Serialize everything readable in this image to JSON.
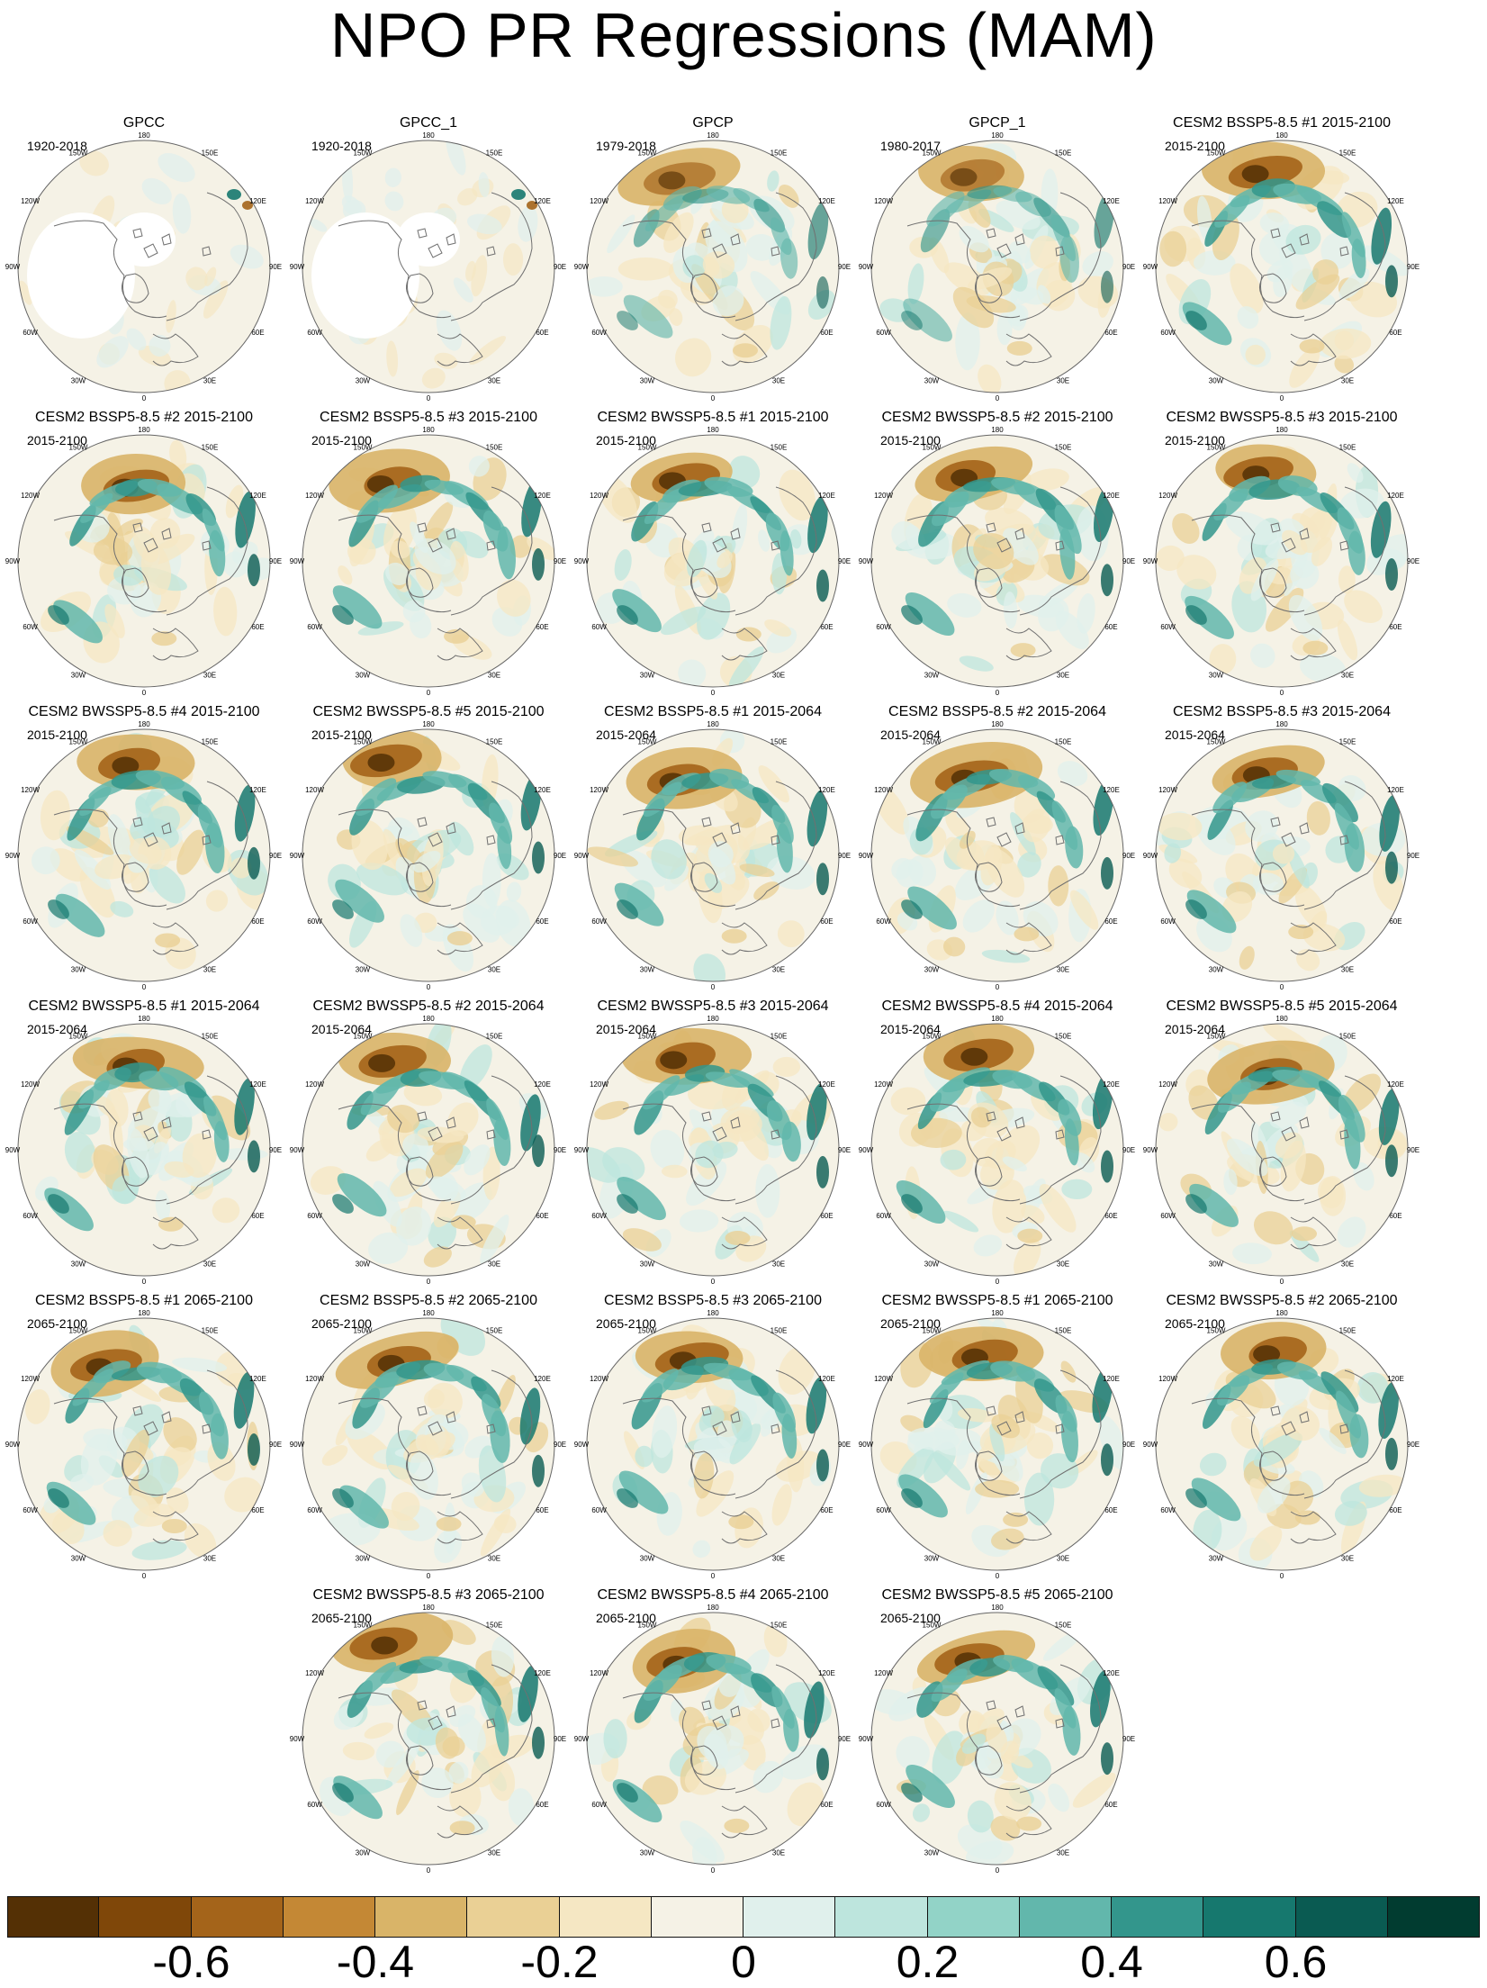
{
  "title": "NPO PR Regressions (MAM)",
  "lon_labels": [
    "180",
    "150E",
    "120E",
    "90E",
    "60E",
    "30E",
    "0",
    "30W",
    "60W",
    "90W",
    "120W",
    "150W"
  ],
  "panels": [
    {
      "title": "GPCC",
      "period": "1920-2018",
      "pattern": "obs_sparse"
    },
    {
      "title": "GPCC_1",
      "period": "1920-2018",
      "pattern": "obs_sparse"
    },
    {
      "title": "GPCP",
      "period": "1979-2018",
      "pattern": "obs"
    },
    {
      "title": "GPCP_1",
      "period": "1980-2017",
      "pattern": "obs"
    },
    {
      "title": "CESM2 BSSP5-8.5 #1 2015-2100",
      "period": "2015-2100",
      "pattern": "model"
    },
    {
      "title": "CESM2 BSSP5-8.5 #2 2015-2100",
      "period": "2015-2100",
      "pattern": "model"
    },
    {
      "title": "CESM2 BSSP5-8.5 #3 2015-2100",
      "period": "2015-2100",
      "pattern": "model"
    },
    {
      "title": "CESM2 BWSSP5-8.5 #1 2015-2100",
      "period": "2015-2100",
      "pattern": "model"
    },
    {
      "title": "CESM2 BWSSP5-8.5 #2 2015-2100",
      "period": "2015-2100",
      "pattern": "model"
    },
    {
      "title": "CESM2 BWSSP5-8.5 #3 2015-2100",
      "period": "2015-2100",
      "pattern": "model"
    },
    {
      "title": "CESM2 BWSSP5-8.5 #4 2015-2100",
      "period": "2015-2100",
      "pattern": "model"
    },
    {
      "title": "CESM2 BWSSP5-8.5 #5 2015-2100",
      "period": "2015-2100",
      "pattern": "model"
    },
    {
      "title": "CESM2 BSSP5-8.5 #1 2015-2064",
      "period": "2015-2064",
      "pattern": "model"
    },
    {
      "title": "CESM2 BSSP5-8.5 #2 2015-2064",
      "period": "2015-2064",
      "pattern": "model"
    },
    {
      "title": "CESM2 BSSP5-8.5 #3 2015-2064",
      "period": "2015-2064",
      "pattern": "model"
    },
    {
      "title": "CESM2 BWSSP5-8.5 #1 2015-2064",
      "period": "2015-2064",
      "pattern": "model"
    },
    {
      "title": "CESM2 BWSSP5-8.5 #2 2015-2064",
      "period": "2015-2064",
      "pattern": "model"
    },
    {
      "title": "CESM2 BWSSP5-8.5 #3 2015-2064",
      "period": "2015-2064",
      "pattern": "model"
    },
    {
      "title": "CESM2 BWSSP5-8.5 #4 2015-2064",
      "period": "2015-2064",
      "pattern": "model"
    },
    {
      "title": "CESM2 BWSSP5-8.5 #5 2015-2064",
      "period": "2015-2064",
      "pattern": "model"
    },
    {
      "title": "CESM2 BSSP5-8.5 #1 2065-2100",
      "period": "2065-2100",
      "pattern": "model"
    },
    {
      "title": "CESM2 BSSP5-8.5 #2 2065-2100",
      "period": "2065-2100",
      "pattern": "model"
    },
    {
      "title": "CESM2 BSSP5-8.5 #3 2065-2100",
      "period": "2065-2100",
      "pattern": "model"
    },
    {
      "title": "CESM2 BWSSP5-8.5 #1 2065-2100",
      "period": "2065-2100",
      "pattern": "model"
    },
    {
      "title": "CESM2 BWSSP5-8.5 #2 2065-2100",
      "period": "2065-2100",
      "pattern": "model"
    },
    {
      "title": "CESM2 BWSSP5-8.5 #3 2065-2100",
      "period": "2065-2100",
      "pattern": "model"
    },
    {
      "title": "CESM2 BWSSP5-8.5 #4 2065-2100",
      "period": "2065-2100",
      "pattern": "model"
    },
    {
      "title": "CESM2 BWSSP5-8.5 #5 2065-2100",
      "period": "2065-2100",
      "pattern": "model"
    }
  ],
  "colorbar": {
    "colors": [
      "#543005",
      "#7f4709",
      "#a4641a",
      "#c48835",
      "#d9b468",
      "#ead095",
      "#f5e7c3",
      "#f5f2e6",
      "#e0f0ec",
      "#bde5dd",
      "#92d3c7",
      "#62b7ac",
      "#33968c",
      "#16786e",
      "#0a5b52",
      "#013c30"
    ],
    "labels": [
      "-0.6",
      "-0.4",
      "-0.2",
      "0",
      "0.2",
      "0.4",
      "0.6"
    ],
    "label_boundary_index": [
      1,
      3,
      5,
      7,
      9,
      11,
      13
    ]
  },
  "colors": {
    "land_outline": "#707070",
    "circle_outline": "#666666"
  }
}
